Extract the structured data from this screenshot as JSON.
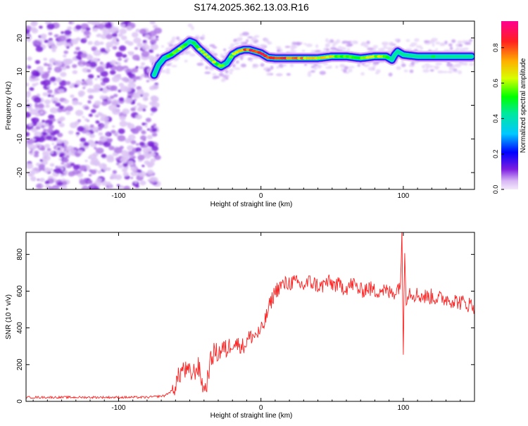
{
  "chart_data": [
    {
      "type": "heatmap",
      "title": "S174.2025.362.13.03.R16",
      "xlabel": "Height of straight line (km)",
      "ylabel": "Frequency (Hz)",
      "xlim": [
        -165,
        150
      ],
      "ylim": [
        -25,
        25
      ],
      "xticks": [
        -100,
        0,
        100
      ],
      "yticks": [
        -20,
        -10,
        0,
        10,
        20
      ],
      "noise_region_x": [
        -165,
        -75
      ],
      "ridge": {
        "x": [
          -75,
          -72,
          -68,
          -63,
          -58,
          -53,
          -50,
          -47,
          -44,
          -40,
          -36,
          -32,
          -28,
          -24,
          -20,
          -16,
          -12,
          -8,
          -4,
          0,
          5,
          10,
          20,
          30,
          40,
          50,
          60,
          70,
          80,
          88,
          92,
          94,
          96,
          100,
          110,
          120,
          130,
          140,
          148
        ],
        "freq": [
          9,
          12,
          14,
          15,
          16.5,
          18,
          19,
          18.5,
          17,
          15.5,
          14,
          12.5,
          11.5,
          12.5,
          15,
          16,
          16.5,
          16.5,
          16,
          15.5,
          14.2,
          14,
          14,
          14,
          14,
          14.5,
          14.5,
          14,
          14.5,
          14.5,
          13.5,
          15,
          16,
          15,
          14.5,
          14.5,
          14.5,
          14.5,
          14.5
        ],
        "amplitude": [
          0.3,
          0.4,
          0.5,
          0.55,
          0.6,
          0.55,
          0.5,
          0.55,
          0.6,
          0.7,
          0.65,
          0.6,
          0.55,
          0.5,
          0.6,
          0.75,
          0.8,
          0.85,
          0.9,
          0.85,
          0.9,
          0.8,
          0.85,
          0.75,
          0.7,
          0.65,
          0.6,
          0.6,
          0.65,
          0.6,
          0.5,
          0.45,
          0.4,
          0.4,
          0.4,
          0.45,
          0.4,
          0.45,
          0.4
        ]
      },
      "colorbar": {
        "label": "Normalized spectral amplitude",
        "range": [
          0,
          0.95
        ],
        "ticks": [
          0.0,
          0.2,
          0.4,
          0.6,
          0.8
        ]
      }
    },
    {
      "type": "line",
      "xlabel": "Height of straight line (km)",
      "ylabel": "SNR (10 * v/v)",
      "xlim": [
        -165,
        150
      ],
      "ylim": [
        0,
        920
      ],
      "xticks": [
        -100,
        0,
        100
      ],
      "yticks": [
        0,
        200,
        400,
        600,
        800
      ],
      "color": "#ff2020",
      "series": [
        {
          "name": "SNR",
          "x": [
            -165,
            -140,
            -110,
            -80,
            -68,
            -62,
            -58,
            -55,
            -52,
            -48,
            -44,
            -40,
            -38,
            -36,
            -33,
            -30,
            -27,
            -24,
            -20,
            -16,
            -12,
            -8,
            -4,
            0,
            3,
            6,
            10,
            14,
            18,
            22,
            26,
            30,
            34,
            38,
            42,
            46,
            50,
            55,
            60,
            65,
            70,
            75,
            80,
            85,
            90,
            95,
            98,
            99,
            100,
            101,
            102,
            104,
            106,
            110,
            115,
            120,
            125,
            130,
            135,
            140,
            145,
            150
          ],
          "y": [
            22,
            22,
            22,
            22,
            30,
            60,
            130,
            180,
            160,
            150,
            190,
            60,
            100,
            200,
            270,
            260,
            290,
            280,
            320,
            310,
            300,
            350,
            360,
            380,
            440,
            520,
            600,
            630,
            640,
            650,
            640,
            630,
            650,
            640,
            620,
            650,
            640,
            630,
            620,
            640,
            600,
            620,
            600,
            610,
            590,
            600,
            650,
            900,
            280,
            850,
            560,
            600,
            590,
            580,
            570,
            570,
            560,
            560,
            550,
            540,
            530,
            520
          ]
        }
      ]
    }
  ]
}
